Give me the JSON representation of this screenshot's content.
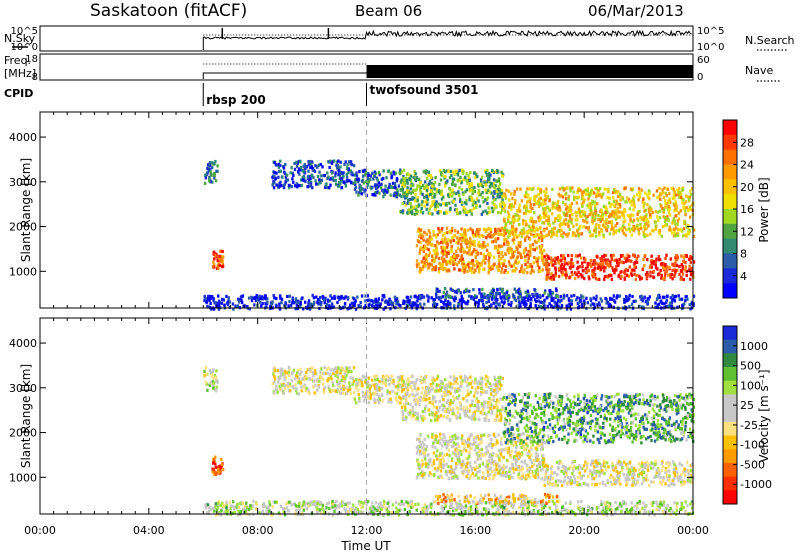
{
  "header": {
    "station": "Saskatoon (fitACF)",
    "beam": "Beam 06",
    "date": "06/Mar/2013"
  },
  "time_axis": {
    "label": "Time UT",
    "range_hours": [
      0,
      24
    ],
    "tick_labels": [
      "00:00",
      "04:00",
      "08:00",
      "12:00",
      "16:00",
      "20:00",
      "00:00"
    ],
    "tick_hours": [
      0,
      4,
      8,
      12,
      16,
      20,
      24
    ]
  },
  "top_panels": {
    "nsky": {
      "left_label": "N.Sky",
      "left_ticks": [
        "10^5",
        "10^0"
      ],
      "right_ticks": [
        "10^5",
        "10^0"
      ],
      "right_label": "N.Search"
    },
    "freq": {
      "left_label_1": "Freq.",
      "left_label_2": "[MHz]",
      "left_ticks": [
        "18",
        "8"
      ],
      "right_ticks": [
        "60",
        "0"
      ],
      "right_label": "Nave"
    },
    "cpid": {
      "label": "CPID",
      "modes": [
        {
          "name": "rbsp 200",
          "start_hour": 6.0
        },
        {
          "name": "twofsound 3501",
          "start_hour": 12.0
        }
      ]
    }
  },
  "chart_data": [
    {
      "type": "heatmap",
      "name": "power",
      "ylabel": "Slant Range [km]",
      "ylim": [
        180,
        4560
      ],
      "y_ticks": [
        1000,
        2000,
        3000,
        4000
      ],
      "x_unit": "hours UT",
      "colorbar": {
        "label": "Power [dB]",
        "ticks": [
          "28",
          "24",
          "20",
          "16",
          "12",
          "8",
          "4"
        ],
        "colors": [
          "#ff0000",
          "#ff3a00",
          "#ff7000",
          "#ff9a00",
          "#ffc000",
          "#f0e000",
          "#a0d820",
          "#4fa640",
          "#2f8a70",
          "#2a5caa",
          "#1a2ad8",
          "#0000ff"
        ]
      },
      "regions": [
        {
          "x": [
            6.0,
            6.5
          ],
          "y": [
            2950,
            3500
          ],
          "level": 0.25
        },
        {
          "x": [
            6.3,
            6.7
          ],
          "y": [
            1100,
            1500
          ],
          "level": 0.85
        },
        {
          "x": [
            6.0,
            24.0
          ],
          "y": [
            190,
            500
          ],
          "level": 0.08
        },
        {
          "x": [
            11.5,
            13.2
          ],
          "y": [
            2700,
            3300
          ],
          "level": 0.2
        },
        {
          "x": [
            13.2,
            17.0
          ],
          "y": [
            2300,
            3300
          ],
          "level": 0.4
        },
        {
          "x": [
            13.8,
            18.5
          ],
          "y": [
            1000,
            2000
          ],
          "level": 0.7
        },
        {
          "x": [
            18.5,
            24.0
          ],
          "y": [
            850,
            1400
          ],
          "level": 0.9
        },
        {
          "x": [
            17.0,
            24.0
          ],
          "y": [
            1800,
            2900
          ],
          "level": 0.6
        },
        {
          "x": [
            14.5,
            19.0
          ],
          "y": [
            450,
            650
          ],
          "level": 0.2
        },
        {
          "x": [
            8.5,
            11.5
          ],
          "y": [
            2900,
            3500
          ],
          "level": 0.15
        }
      ]
    },
    {
      "type": "heatmap",
      "name": "velocity",
      "ylabel": "Slant Range [km]",
      "ylim": [
        180,
        4560
      ],
      "y_ticks": [
        1000,
        2000,
        3000,
        4000
      ],
      "x_unit": "hours UT",
      "colorbar": {
        "label": "Velocity [m s⁻¹]",
        "ticks": [
          "1000",
          "500",
          "100",
          "25",
          "-25",
          "-100",
          "-500",
          "-1000"
        ],
        "colors": [
          "#1a2ad8",
          "#2a5caa",
          "#2f8a40",
          "#5fc030",
          "#a0e040",
          "#c8c8c8",
          "#c8c8c8",
          "#ffe080",
          "#ffc000",
          "#ff9a00",
          "#ff6000",
          "#ff3000",
          "#ff0000"
        ]
      },
      "regions": [
        {
          "x": [
            6.0,
            6.5
          ],
          "y": [
            2950,
            3500
          ],
          "level": 0.55
        },
        {
          "x": [
            6.3,
            6.7
          ],
          "y": [
            1100,
            1500
          ],
          "level": 0.15
        },
        {
          "x": [
            6.0,
            24.0
          ],
          "y": [
            190,
            500
          ],
          "level": 0.6
        },
        {
          "x": [
            11.5,
            13.2
          ],
          "y": [
            2700,
            3300
          ],
          "level": 0.5
        },
        {
          "x": [
            13.2,
            17.0
          ],
          "y": [
            2300,
            3300
          ],
          "level": 0.5
        },
        {
          "x": [
            13.8,
            18.5
          ],
          "y": [
            1000,
            2000
          ],
          "level": 0.5
        },
        {
          "x": [
            18.5,
            24.0
          ],
          "y": [
            850,
            1400
          ],
          "level": 0.5
        },
        {
          "x": [
            17.0,
            24.0
          ],
          "y": [
            1800,
            2900
          ],
          "level": 0.75
        },
        {
          "x": [
            14.5,
            19.0
          ],
          "y": [
            450,
            650
          ],
          "level": 0.35
        },
        {
          "x": [
            8.5,
            11.5
          ],
          "y": [
            2900,
            3500
          ],
          "level": 0.5
        }
      ]
    }
  ]
}
